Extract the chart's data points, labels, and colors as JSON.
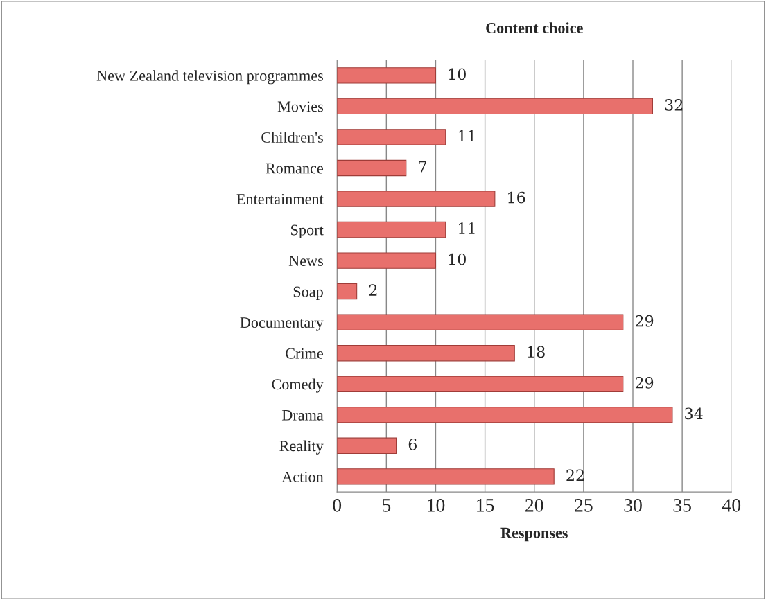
{
  "chart_data": {
    "type": "bar",
    "orientation": "horizontal",
    "title": "Content choice",
    "xlabel": "Responses",
    "categories": [
      "New Zealand television programmes",
      "Movies",
      "Children's",
      "Romance",
      "Entertainment",
      "Sport",
      "News",
      "Soap",
      "Documentary",
      "Crime",
      "Comedy",
      "Drama",
      "Reality",
      "Action"
    ],
    "values": [
      10,
      32,
      11,
      7,
      16,
      11,
      10,
      2,
      29,
      18,
      29,
      34,
      6,
      22
    ],
    "color": "#e8706c",
    "xlim": [
      0,
      40
    ],
    "xticks": [
      0,
      5,
      10,
      15,
      20,
      25,
      30,
      35,
      40
    ],
    "grid": "x",
    "data_labels": true
  }
}
